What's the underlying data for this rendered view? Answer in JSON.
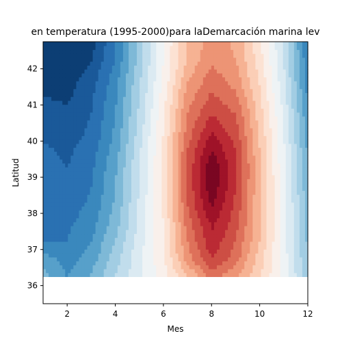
{
  "chart_data": {
    "type": "heatmap",
    "title": "en temperatura (1995-2000)para laDemarcación marina lev",
    "xlabel": "Mes",
    "ylabel": "Latitud",
    "xlim": [
      1,
      12
    ],
    "ylim": [
      35.5,
      42.75
    ],
    "x_ticks": [
      "2",
      "4",
      "6",
      "8",
      "10",
      "12"
    ],
    "y_ticks": [
      "36",
      "37",
      "38",
      "39",
      "40",
      "41",
      "42"
    ],
    "grid": false,
    "colormap": "RdBu_r",
    "months": [
      1,
      2,
      3,
      4,
      5,
      6,
      7,
      8,
      9,
      10,
      11,
      12
    ],
    "latitudes": [
      36.25,
      36.75,
      37.25,
      37.75,
      38.25,
      38.75,
      39.25,
      39.75,
      40.25,
      40.75,
      41.25,
      41.75,
      42.25,
      42.75
    ],
    "anomaly": [
      [
        -0.45,
        -0.6,
        -0.48,
        -0.3,
        -0.12,
        0.05,
        0.28,
        0.55,
        0.4,
        0.22,
        -0.05,
        -0.35
      ],
      [
        -0.55,
        -0.65,
        -0.55,
        -0.35,
        -0.12,
        0.08,
        0.45,
        0.7,
        0.55,
        0.25,
        -0.05,
        -0.4
      ],
      [
        -0.7,
        -0.7,
        -0.6,
        -0.4,
        -0.15,
        0.1,
        0.5,
        0.78,
        0.6,
        0.3,
        -0.05,
        -0.42
      ],
      [
        -0.7,
        -0.72,
        -0.65,
        -0.45,
        -0.18,
        0.1,
        0.55,
        0.82,
        0.65,
        0.3,
        -0.05,
        -0.45
      ],
      [
        -0.72,
        -0.75,
        -0.68,
        -0.48,
        -0.18,
        0.12,
        0.6,
        0.92,
        0.68,
        0.3,
        -0.05,
        -0.45
      ],
      [
        -0.72,
        -0.78,
        -0.7,
        -0.5,
        -0.2,
        0.12,
        0.62,
        0.98,
        0.7,
        0.32,
        -0.05,
        -0.48
      ],
      [
        -0.75,
        -0.8,
        -0.72,
        -0.52,
        -0.2,
        0.12,
        0.62,
        1.0,
        0.72,
        0.32,
        -0.08,
        -0.5
      ],
      [
        -0.78,
        -0.82,
        -0.75,
        -0.55,
        -0.22,
        0.12,
        0.6,
        0.9,
        0.7,
        0.3,
        -0.08,
        -0.52
      ],
      [
        -0.82,
        -0.85,
        -0.78,
        -0.58,
        -0.25,
        0.1,
        0.55,
        0.8,
        0.65,
        0.28,
        -0.1,
        -0.55
      ],
      [
        -0.85,
        -0.88,
        -0.8,
        -0.6,
        -0.28,
        0.08,
        0.5,
        0.7,
        0.6,
        0.25,
        -0.12,
        -0.58
      ],
      [
        -0.9,
        -0.92,
        -0.82,
        -0.62,
        -0.3,
        0.05,
        0.45,
        0.62,
        0.52,
        0.22,
        -0.15,
        -0.62
      ],
      [
        -0.92,
        -0.95,
        -0.85,
        -0.65,
        -0.32,
        0.02,
        0.38,
        0.55,
        0.45,
        0.18,
        -0.18,
        -0.65
      ],
      [
        -0.95,
        -1.0,
        -0.9,
        -0.7,
        -0.35,
        0.0,
        0.32,
        0.48,
        0.4,
        0.15,
        -0.2,
        -0.68
      ],
      [
        -0.95,
        -1.0,
        -0.95,
        -0.7,
        -0.35,
        0.0,
        0.3,
        0.45,
        0.38,
        0.12,
        -0.22,
        -0.7
      ]
    ],
    "data_lat_range": [
      36.25,
      42.75
    ]
  }
}
